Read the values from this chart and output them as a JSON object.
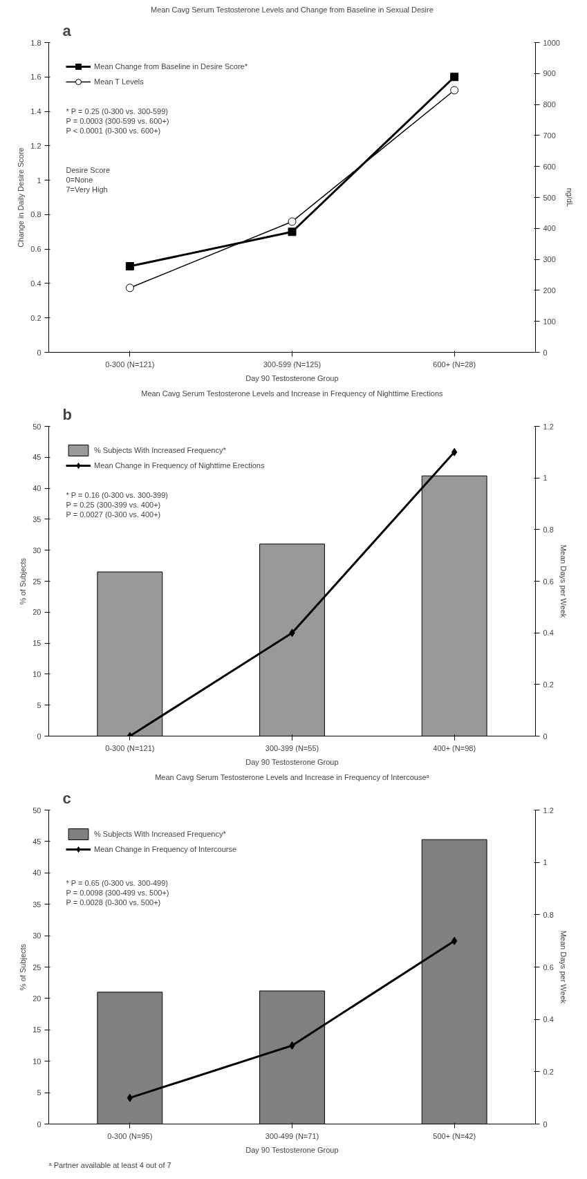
{
  "chart_data": [
    {
      "type": "line",
      "title": "Mean Cavg Serum Testosterone Levels and Change from Baseline in Sexual Desire",
      "xlabel": "Day 90 Testosterone Group",
      "ylabel": "Change in Daily Desire Score",
      "y2label": "ng/dL",
      "categories": [
        "0-300 (N=121)",
        "300-599 (N=125)",
        "600+ (N=28)"
      ],
      "series": [
        {
          "name": "Mean Change from Baseline in Desire Score*",
          "color": "#000000",
          "values": [
            0.5,
            0.7,
            1.6
          ],
          "marker": "square"
        },
        {
          "name": "Mean T Levels",
          "color": "#000000",
          "values": [
            208,
            422,
            846
          ],
          "marker": "circle",
          "axis": "y2"
        }
      ],
      "ylim": [
        0,
        1.8
      ],
      "yticks": [
        0,
        0.2,
        0.4,
        0.6,
        0.8,
        1,
        1.2,
        1.4,
        1.6,
        1.8
      ],
      "y2lim": [
        0,
        1000
      ],
      "y2ticks": [
        0,
        100,
        200,
        300,
        400,
        500,
        600,
        700,
        800,
        900,
        1000
      ],
      "legend": "top left",
      "grid": false,
      "annotations": [
        "a",
        "* P = 0.25 (0-300 vs. 300-599)\n  P = 0.0003 (300-599 vs. 600+)\n  P < 0.0001 (0-300 vs. 600+)",
        "Desire Score\n0=None\n7=Very High"
      ]
    },
    {
      "type": "bar",
      "title": "Mean Cavg Serum Testosterone Levels and Increase in Frequency of Nighttime Erections",
      "xlabel": "Day 90 Testosterone Group",
      "ylabel": "% of Subjects",
      "y2label": "Mean Days per Week",
      "categories": [
        "0-300 (N=121)",
        "300-399 (N=55)",
        "400+ (N=98)"
      ],
      "series": [
        {
          "name": "% Subjects With Increased Frequency*",
          "color": "#999999",
          "values": [
            26.5,
            31,
            42
          ]
        },
        {
          "name": "Mean Change in Frequency of Nighttime Erections",
          "type": "line",
          "color": "#000000",
          "values": [
            0,
            0.4,
            1.1
          ],
          "marker": "diamond",
          "axis": "y2"
        }
      ],
      "ylim": [
        0,
        50
      ],
      "yticks": [
        0,
        5,
        10,
        15,
        20,
        25,
        30,
        35,
        40,
        45,
        50
      ],
      "y2lim": [
        0,
        1.2
      ],
      "y2ticks": [
        0,
        0.2,
        0.4,
        0.6,
        0.8,
        1,
        1.2
      ],
      "legend": "top left",
      "grid": false,
      "annotations": [
        "b",
        "* P = 0.16 (0-300 vs. 300-399)\n  P = 0.25 (300-399 vs. 400+)\n  P = 0.0027 (0-300 vs. 400+)"
      ]
    },
    {
      "type": "bar",
      "title": "Mean Cavg Serum Testosterone Levels and Increase in Frequency of Intercouseᵃ",
      "xlabel": "Day 90 Testosterone Group",
      "ylabel": "% of Subjects",
      "y2label": "Mean Days per Week",
      "categories": [
        "0-300 (N=95)",
        "300-499 (N=71)",
        "500+ (N=42)"
      ],
      "series": [
        {
          "name": "% Subjects With Increased Frequency*",
          "color": "#808080",
          "values": [
            21,
            21.2,
            45.3
          ]
        },
        {
          "name": "Mean Change in Frequency of Intercourse",
          "type": "line",
          "color": "#000000",
          "values": [
            0.1,
            0.3,
            0.7
          ],
          "marker": "diamond",
          "axis": "y2"
        }
      ],
      "ylim": [
        0,
        50
      ],
      "yticks": [
        0,
        5,
        10,
        15,
        20,
        25,
        30,
        35,
        40,
        45,
        50
      ],
      "y2lim": [
        0,
        1.2
      ],
      "y2ticks": [
        0,
        0.2,
        0.4,
        0.6,
        0.8,
        1,
        1.2
      ],
      "legend": "top left",
      "grid": false,
      "annotations": [
        "c",
        "* P = 0.65 (0-300 vs. 300-499)\n  P = 0.0098 (300-499 vs. 500+)\n  P = 0.0028 (0-300 vs. 500+)",
        "ᵃ Partner available at least 4 out of 7"
      ]
    }
  ]
}
